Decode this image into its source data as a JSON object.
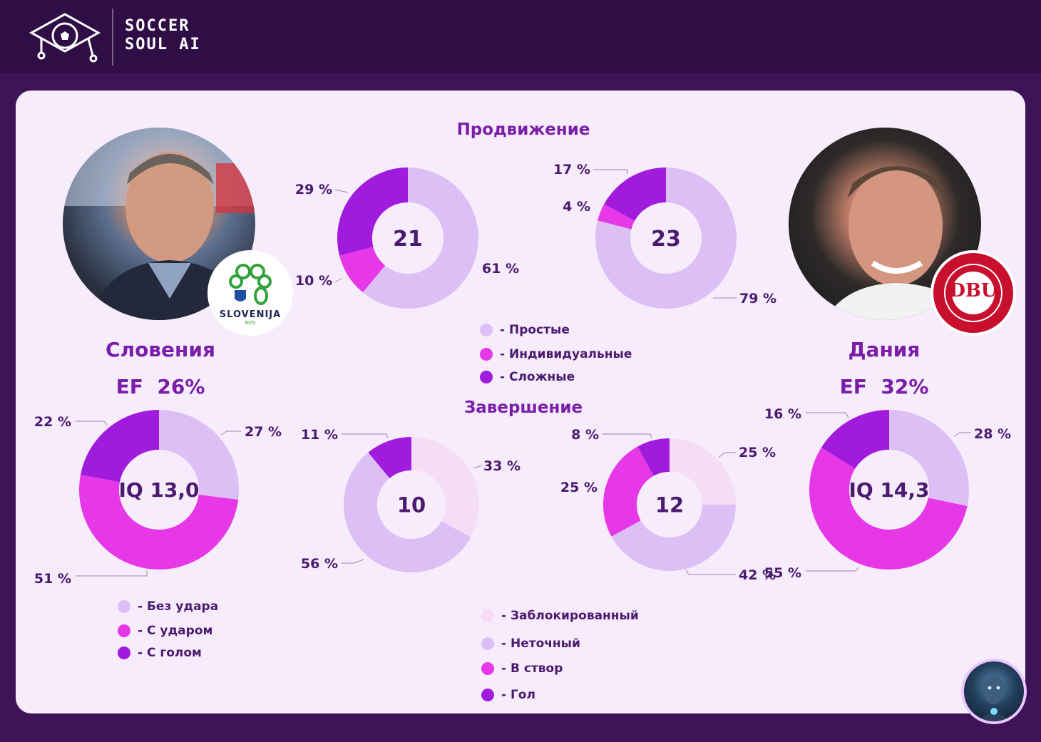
{
  "brand": {
    "line1": "SOCCER",
    "line2": "SOUL AI"
  },
  "colors": {
    "blocked": "#f6ddf7",
    "light": "#dcc0f5",
    "magenta": "#e638e6",
    "purple": "#a11bdd",
    "title": "#7a1ea8",
    "label": "#4a1a6e"
  },
  "teams": {
    "left": {
      "name": "Словения",
      "ef": "EF  26%",
      "badge_text": "SLOVENIJA",
      "badge_sub": "NZS"
    },
    "right": {
      "name": "Дания",
      "ef": "EF  32%",
      "badge_text": "DBU"
    }
  },
  "sections": {
    "progress": "Продвижение",
    "finish": "Завершение"
  },
  "legend_progress": [
    "- Простые",
    "- Индивидуальные",
    "- Сложные"
  ],
  "legend_shots": [
    "- Без удара",
    "- С ударом",
    "- С голом"
  ],
  "legend_finish": [
    "- Заблокированный",
    "- Неточный",
    "- В створ",
    "- Гол"
  ],
  "chart_data": [
    {
      "type": "pie",
      "group": "Продвижение",
      "team": "Словения",
      "center": "21",
      "categories": [
        "- Простые",
        "- Индивидуальные",
        "- Сложные"
      ],
      "values": [
        61,
        10,
        29
      ],
      "labels": [
        "61 %",
        "10 %",
        "29 %"
      ]
    },
    {
      "type": "pie",
      "group": "Продвижение",
      "team": "Дания",
      "center": "23",
      "categories": [
        "- Простые",
        "- Индивидуальные",
        "- Сложные"
      ],
      "values": [
        79,
        4,
        17
      ],
      "labels": [
        "79 %",
        "4 %",
        "17 %"
      ]
    },
    {
      "type": "pie",
      "team": "Словения",
      "center": "IQ 13,0",
      "categories": [
        "- Без удара",
        "- С ударом",
        "- С голом"
      ],
      "values": [
        27,
        51,
        22
      ],
      "labels": [
        "27 %",
        "51 %",
        "22 %"
      ]
    },
    {
      "type": "pie",
      "team": "Дания",
      "center": "IQ 14,3",
      "categories": [
        "- Без удара",
        "- С ударом",
        "- С голом"
      ],
      "values": [
        28,
        55,
        16
      ],
      "labels": [
        "28 %",
        "55 %",
        "16 %"
      ]
    },
    {
      "type": "pie",
      "group": "Завершение",
      "team": "Словения",
      "center": "10",
      "categories": [
        "- Заблокированный",
        "- Неточный",
        "- В створ",
        "- Гол"
      ],
      "values": [
        33,
        56,
        0,
        11
      ],
      "labels": [
        "33 %",
        "56 %",
        "",
        "11 %"
      ]
    },
    {
      "type": "pie",
      "group": "Завершение",
      "team": "Дания",
      "center": "12",
      "categories": [
        "- Заблокированный",
        "- Неточный",
        "- В створ",
        "- Гол"
      ],
      "values": [
        25,
        42,
        25,
        8
      ],
      "labels": [
        "25 %",
        "42 %",
        "25 %",
        "8 %"
      ]
    }
  ]
}
